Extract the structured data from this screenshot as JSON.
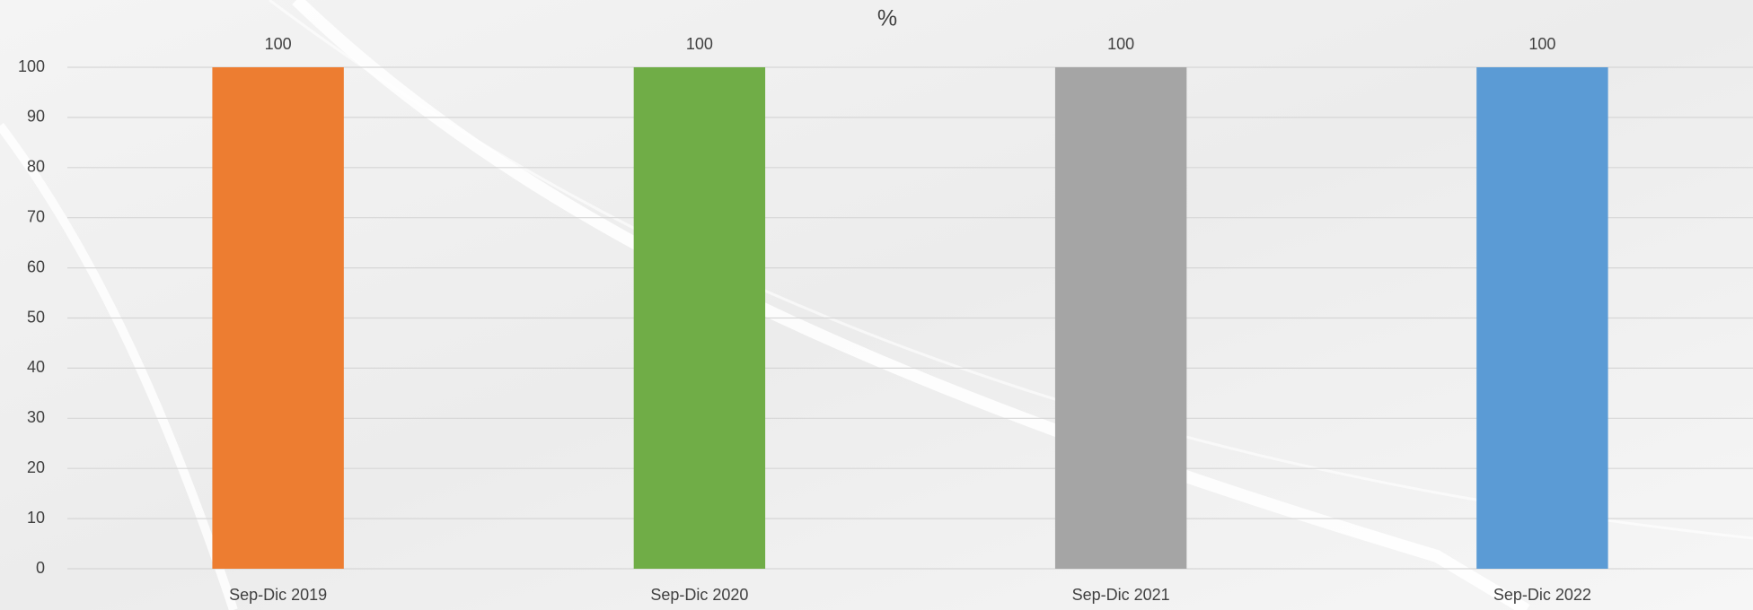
{
  "chart_data": {
    "type": "bar",
    "title": "%",
    "categories": [
      "Sep-Dic 2019",
      "Sep-Dic 2020",
      "Sep-Dic 2021",
      "Sep-Dic 2022"
    ],
    "values": [
      100,
      100,
      100,
      100
    ],
    "colors": [
      "#ed7d31",
      "#70ad47",
      "#a5a5a5",
      "#5b9bd5"
    ],
    "ylim": [
      0,
      100
    ],
    "yticks": [
      0,
      10,
      20,
      30,
      40,
      50,
      60,
      70,
      80,
      90,
      100
    ],
    "grid": true,
    "data_labels": true
  }
}
